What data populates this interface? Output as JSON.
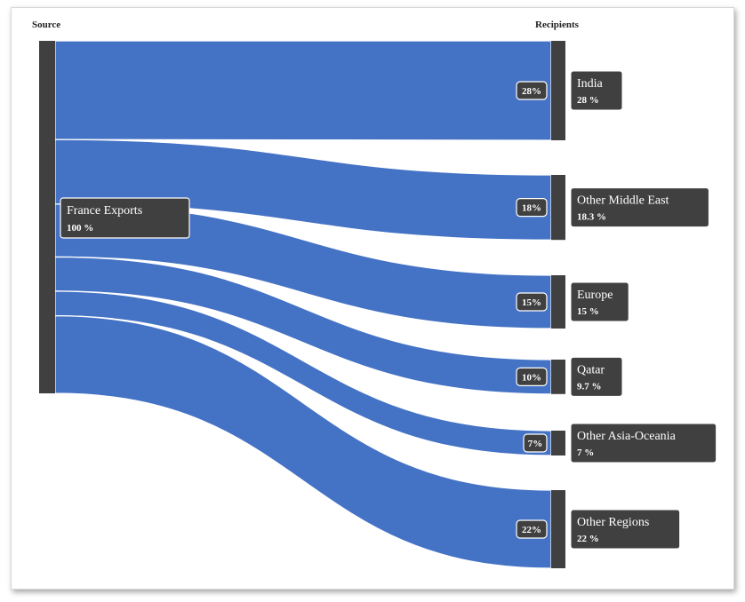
{
  "chart_data": {
    "type": "sankey",
    "column_headers": {
      "source": "Source",
      "target": "Recipients"
    },
    "source": {
      "name": "France Exports",
      "share_label": "100 %"
    },
    "flow_color": "#4472c4",
    "node_color": "#404040",
    "flows": [
      {
        "target": "India",
        "value": 28,
        "percent_label": "28%",
        "target_share_label": "28 %"
      },
      {
        "target": "Other Middle East",
        "value": 18.3,
        "percent_label": "18%",
        "target_share_label": "18.3 %"
      },
      {
        "target": "Europe",
        "value": 15,
        "percent_label": "15%",
        "target_share_label": "15 %"
      },
      {
        "target": "Qatar",
        "value": 9.7,
        "percent_label": "10%",
        "target_share_label": "9.7 %"
      },
      {
        "target": "Other Asia-Oceania",
        "value": 7,
        "percent_label": "7%",
        "target_share_label": "7 %"
      },
      {
        "target": "Other Regions",
        "value": 22,
        "percent_label": "22%",
        "target_share_label": "22 %"
      }
    ]
  }
}
